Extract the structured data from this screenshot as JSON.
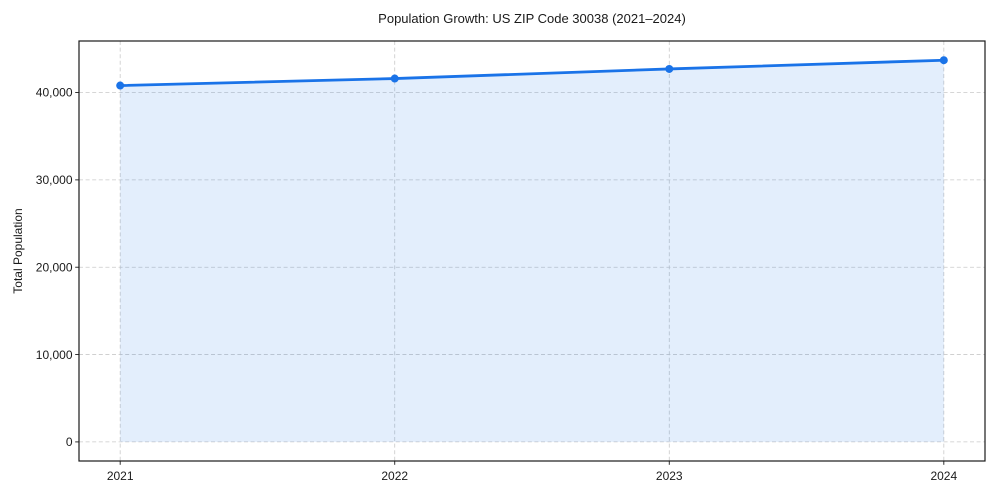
{
  "chart_data": {
    "type": "area",
    "title": "Population Growth: US ZIP Code 30038 (2021–2024)",
    "xlabel": "",
    "ylabel": "Total Population",
    "categories": [
      2021,
      2022,
      2023,
      2024
    ],
    "x_tick_labels": [
      "2021",
      "2022",
      "2023",
      "2024"
    ],
    "series": [
      {
        "name": "Total Population",
        "values": [
          40800,
          41600,
          42700,
          43700
        ]
      }
    ],
    "y_ticks": [
      0,
      10000,
      20000,
      30000,
      40000
    ],
    "y_tick_labels": [
      "0",
      "10,000",
      "20,000",
      "30,000",
      "40,000"
    ],
    "xlim": [
      2020.85,
      2024.15
    ],
    "ylim": [
      -2186,
      45900
    ],
    "grid": true,
    "grid_line_style": "dashed",
    "legend": "none",
    "marker": "circle",
    "colors": {
      "line": "#1a73e8",
      "marker": "#1a73e8",
      "fill": "#1a73e8",
      "fill_opacity": 0.12,
      "grid": "#c9c9c9",
      "axis": "#1a1a1a",
      "text": "#1a1a1a",
      "background": "#ffffff"
    }
  }
}
